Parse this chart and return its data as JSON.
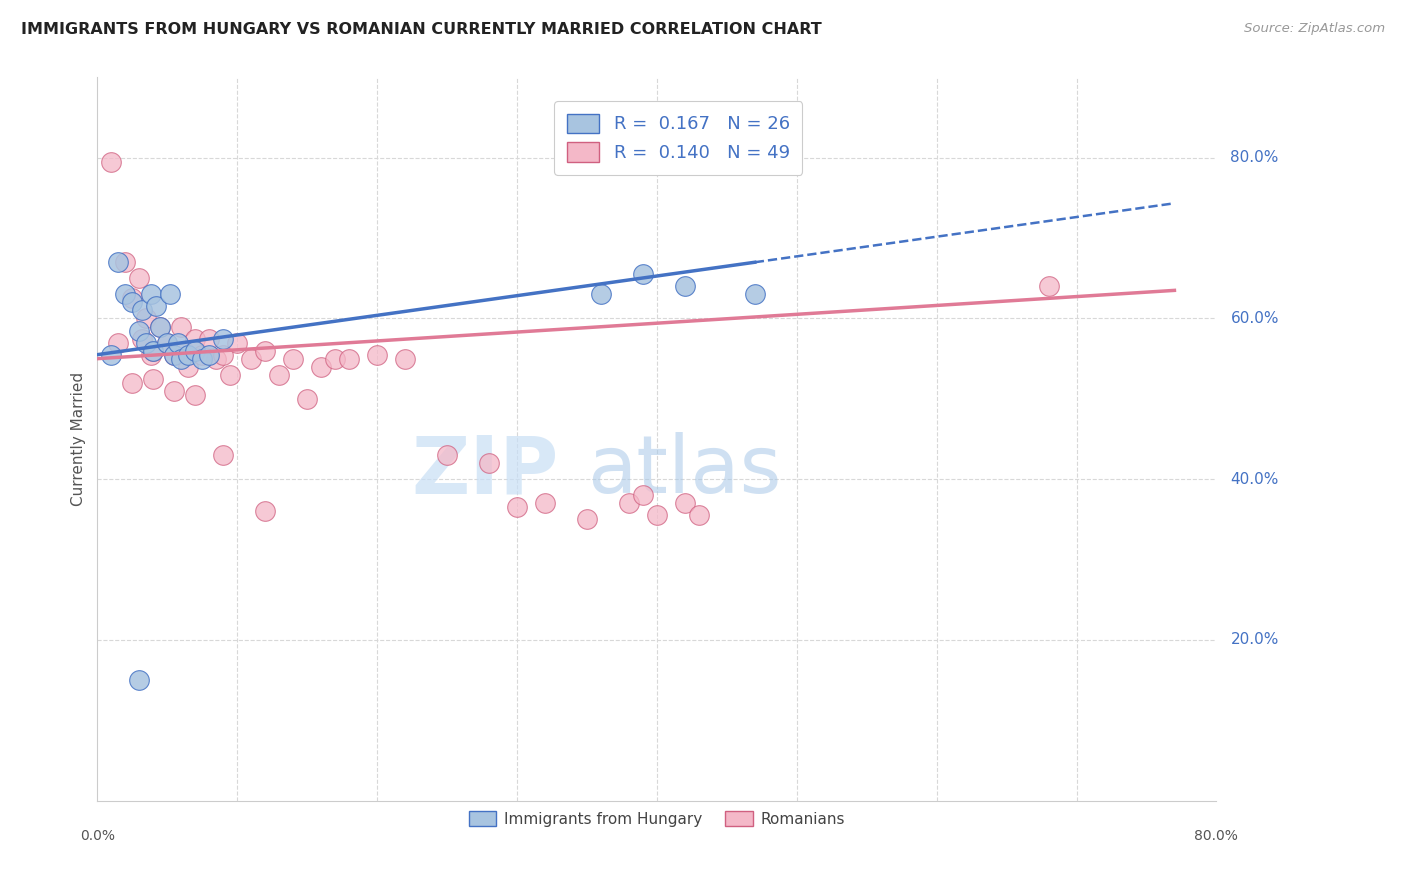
{
  "title": "IMMIGRANTS FROM HUNGARY VS ROMANIAN CURRENTLY MARRIED CORRELATION CHART",
  "source": "Source: ZipAtlas.com",
  "ylabel": "Currently Married",
  "right_yticks": [
    20.0,
    40.0,
    60.0,
    80.0
  ],
  "background_color": "#ffffff",
  "hungary_color": "#a8c4e0",
  "romanian_color": "#f4b8c8",
  "hungary_line_color": "#4472c4",
  "romanian_line_color": "#e07a96",
  "legend_r_hungary": "0.167",
  "legend_n_hungary": "26",
  "legend_r_romanian": "0.140",
  "legend_n_romanian": "49",
  "hungary_x": [
    1.0,
    1.5,
    2.0,
    2.5,
    3.0,
    3.2,
    3.5,
    3.8,
    4.0,
    4.2,
    4.5,
    5.0,
    5.2,
    5.5,
    5.8,
    6.0,
    6.5,
    7.0,
    7.5,
    8.0,
    9.0,
    36.0,
    39.0,
    42.0,
    47.0,
    3.0
  ],
  "hungary_y": [
    55.5,
    67.0,
    63.0,
    62.0,
    58.5,
    61.0,
    57.0,
    63.0,
    56.0,
    61.5,
    59.0,
    57.0,
    63.0,
    55.5,
    57.0,
    55.0,
    55.5,
    56.0,
    55.0,
    55.5,
    57.5,
    63.0,
    65.5,
    64.0,
    63.0,
    15.0
  ],
  "romanian_x": [
    1.0,
    1.5,
    2.0,
    2.5,
    3.0,
    3.2,
    3.5,
    3.8,
    4.0,
    4.5,
    5.0,
    5.5,
    6.0,
    6.2,
    6.5,
    7.0,
    7.5,
    8.0,
    8.5,
    9.0,
    9.5,
    10.0,
    11.0,
    12.0,
    13.0,
    14.0,
    15.0,
    16.0,
    17.0,
    18.0,
    20.0,
    22.0,
    25.0,
    28.0,
    30.0,
    32.0,
    35.0,
    38.0,
    39.0,
    40.0,
    42.0,
    43.0,
    68.0,
    2.5,
    4.0,
    5.5,
    7.0,
    9.0,
    12.0
  ],
  "romanian_y": [
    79.5,
    57.0,
    67.0,
    62.5,
    65.0,
    57.5,
    60.0,
    55.5,
    56.0,
    59.0,
    57.0,
    55.5,
    59.0,
    56.0,
    54.0,
    57.5,
    55.5,
    57.5,
    55.0,
    55.5,
    53.0,
    57.0,
    55.0,
    56.0,
    53.0,
    55.0,
    50.0,
    54.0,
    55.0,
    55.0,
    55.5,
    55.0,
    43.0,
    42.0,
    36.5,
    37.0,
    35.0,
    37.0,
    38.0,
    35.5,
    37.0,
    35.5,
    64.0,
    52.0,
    52.5,
    51.0,
    50.5,
    43.0,
    36.0
  ],
  "xlim": [
    0.0,
    80.0
  ],
  "ylim": [
    0.0,
    90.0
  ],
  "grid_color": "#d8d8d8",
  "watermark_zip": "ZIP",
  "watermark_atlas": "atlas",
  "watermark_color": "#ddeeff",
  "trendline_hungary_start_y": 55.5,
  "trendline_hungary_end_y": 67.0,
  "trendline_romanian_start_y": 55.0,
  "trendline_romanian_end_y": 63.5,
  "trendline_x_start": 0.0,
  "trendline_x_solid_end": 47.0,
  "trendline_x_dash_end": 77.0
}
